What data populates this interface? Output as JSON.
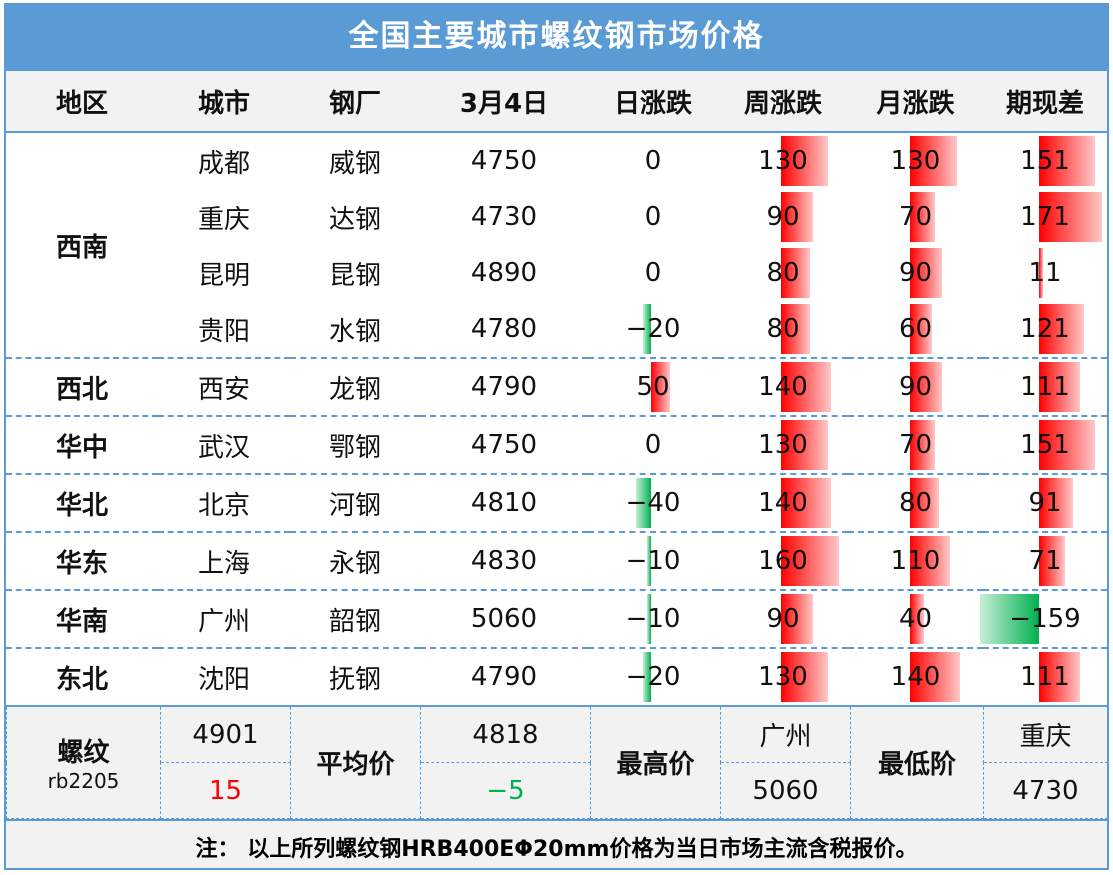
{
  "title": "全国主要城市螺纹钢市场价格",
  "headers": [
    "地区",
    "城市",
    "钢厂",
    "3月4日",
    "日涨跌",
    "周涨跌",
    "月涨跌",
    "期现差"
  ],
  "colors": {
    "accent": "#5b9bd5",
    "up": "#ff0000",
    "down": "#00b050"
  },
  "rows": [
    {
      "region": "西南",
      "city": "成都",
      "mill": "威钢",
      "price": "4750",
      "day": 0,
      "week": 130,
      "month": 130,
      "basis": 151
    },
    {
      "region": "",
      "city": "重庆",
      "mill": "达钢",
      "price": "4730",
      "day": 0,
      "week": 90,
      "month": 70,
      "basis": 171
    },
    {
      "region": "",
      "city": "昆明",
      "mill": "昆钢",
      "price": "4890",
      "day": 0,
      "week": 80,
      "month": 90,
      "basis": 11
    },
    {
      "region": "",
      "city": "贵阳",
      "mill": "水钢",
      "price": "4780",
      "day": -20,
      "week": 80,
      "month": 60,
      "basis": 121
    },
    {
      "region": "西北",
      "city": "西安",
      "mill": "龙钢",
      "price": "4790",
      "day": 50,
      "week": 140,
      "month": 90,
      "basis": 111
    },
    {
      "region": "华中",
      "city": "武汉",
      "mill": "鄂钢",
      "price": "4750",
      "day": 0,
      "week": 130,
      "month": 70,
      "basis": 151
    },
    {
      "region": "华北",
      "city": "北京",
      "mill": "河钢",
      "price": "4810",
      "day": -40,
      "week": 140,
      "month": 80,
      "basis": 91
    },
    {
      "region": "华东",
      "city": "上海",
      "mill": "永钢",
      "price": "4830",
      "day": -10,
      "week": 160,
      "month": 110,
      "basis": 71
    },
    {
      "region": "华南",
      "city": "广州",
      "mill": "韶钢",
      "price": "5060",
      "day": -10,
      "week": 90,
      "month": 40,
      "basis": -159
    },
    {
      "region": "东北",
      "city": "沈阳",
      "mill": "抚钢",
      "price": "4790",
      "day": -20,
      "week": 130,
      "month": 140,
      "basis": 111
    }
  ],
  "summary": {
    "futures_label": "螺纹",
    "futures_code": "rb2205",
    "futures_price": "4901",
    "futures_change": "15",
    "avg_label": "平均价",
    "avg_price": "4818",
    "avg_change": "−5",
    "high_label": "最高价",
    "high_city": "广州",
    "high_price": "5060",
    "low_label": "最低阶",
    "low_city": "重庆",
    "low_price": "4730"
  },
  "note": "注：  以上所列螺纹钢HRB400EΦ20mm价格为当日市场主流含税报价。"
}
